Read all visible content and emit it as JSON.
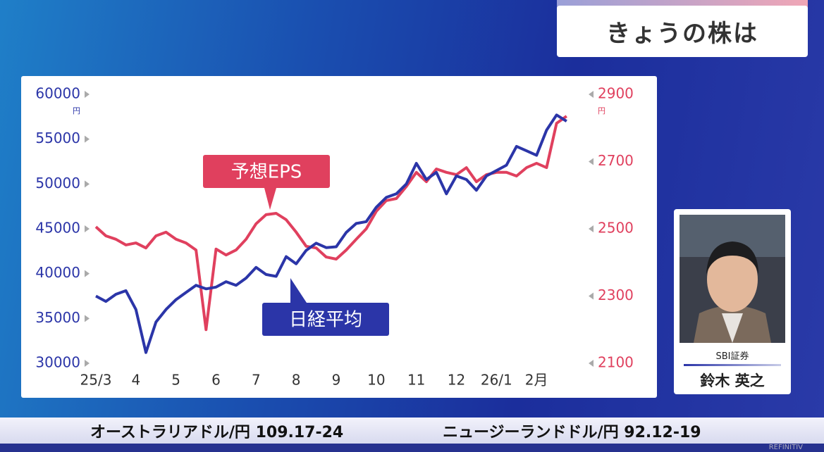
{
  "header": {
    "title": "きょうの株は"
  },
  "chart_data": {
    "type": "line",
    "categories": [
      "25/3",
      null,
      null,
      null,
      "4",
      null,
      null,
      null,
      "5",
      null,
      null,
      null,
      "6",
      null,
      null,
      null,
      "7",
      null,
      null,
      null,
      "8",
      null,
      null,
      null,
      "9",
      null,
      null,
      null,
      "10",
      null,
      null,
      null,
      "11",
      null,
      null,
      null,
      "12",
      null,
      null,
      null,
      "26/1",
      null,
      null,
      null,
      "2月",
      null,
      null,
      null
    ],
    "series": [
      {
        "name": "日経平均",
        "color": "#2b35a8",
        "axis": "y",
        "values": [
          37500,
          36900,
          37700,
          38100,
          36000,
          31200,
          34600,
          36000,
          37100,
          37900,
          38700,
          38300,
          38500,
          39100,
          38700,
          39500,
          40700,
          39900,
          39700,
          41900,
          41100,
          42600,
          43400,
          42900,
          43000,
          44600,
          45600,
          45800,
          47400,
          48500,
          48900,
          50000,
          52300,
          50500,
          51300,
          48900,
          50900,
          50500,
          49300,
          50900,
          51500,
          52100,
          54200,
          53700,
          53200,
          56000,
          57700,
          57000
        ]
      },
      {
        "name": "予想EPS",
        "color": "#e0405e",
        "axis": "y2",
        "values": [
          2506,
          2479,
          2469,
          2452,
          2458,
          2443,
          2479,
          2490,
          2469,
          2458,
          2437,
          2200,
          2440,
          2422,
          2437,
          2469,
          2515,
          2542,
          2546,
          2527,
          2490,
          2448,
          2443,
          2416,
          2410,
          2437,
          2469,
          2500,
          2552,
          2584,
          2590,
          2626,
          2668,
          2640,
          2678,
          2668,
          2661,
          2682,
          2640,
          2661,
          2668,
          2668,
          2657,
          2682,
          2695,
          2682,
          2814,
          2835
        ]
      }
    ],
    "ylim": [
      30000,
      60000
    ],
    "yticks": [
      30000,
      35000,
      40000,
      45000,
      50000,
      55000,
      60000
    ],
    "y_unit": "円",
    "y2lim": [
      2100,
      2900
    ],
    "y2ticks": [
      2100,
      2300,
      2500,
      2700,
      2900
    ],
    "y2_unit": "円",
    "grid": false
  },
  "person": {
    "firm": "SBI証券",
    "name": "鈴木 英之"
  },
  "ticker": {
    "items": [
      "オーストラリアドル/円  109.17-24",
      "ニュージーランドドル/円  92.12-19"
    ],
    "credit": "REFINITIV"
  }
}
